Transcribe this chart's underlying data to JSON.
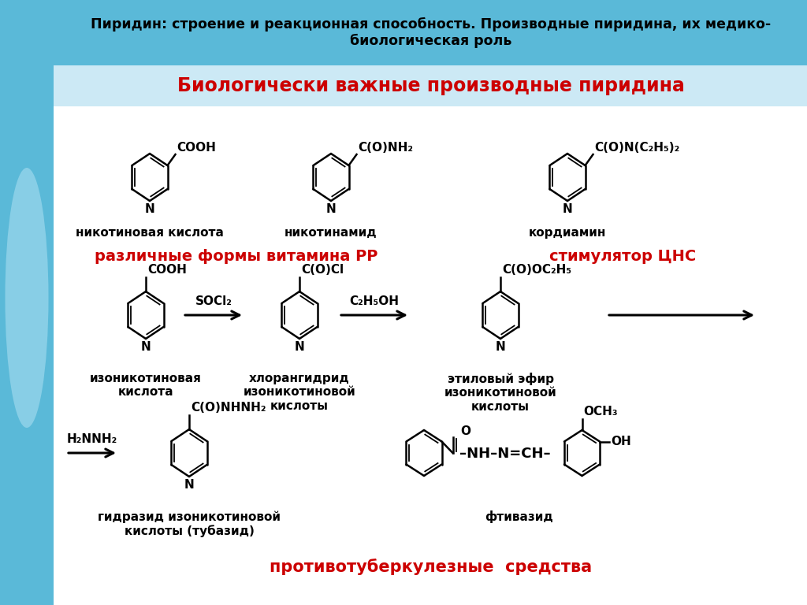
{
  "title_header": "Пиридин: строение и реакционная способность. Производные пиридина, их медико-\nбиологическая роль",
  "title_main": "Биологически важные производные пиридина",
  "bg_color": "#ffffff",
  "header_bg": "#5ab9d8",
  "maintitle_bg": "#cce9f5",
  "red_color": "#cc0000",
  "black_color": "#000000",
  "left_strip_color": "#5ab9d8",
  "label_vitaminPP": "различные формы витамина РР",
  "label_stimulator": "стимулятор ЦНС",
  "label_antituberculosis": "противотуберкулезные  средства",
  "compound1_name": "никотиновая кислота",
  "compound2_name": "никотинамид",
  "compound3_name": "кордиамин",
  "compound4_name": "изоникотиновая\nкислота",
  "compound5_name": "хлорангидрид\nизоникотиновой\nкислоты",
  "compound6_name": "этиловый эфир\nизоникотиновой\nкислоты",
  "compound7_name": "гидразид изоникотиновой\nкислоты (тубазид)",
  "compound8_name": "фтивазид"
}
